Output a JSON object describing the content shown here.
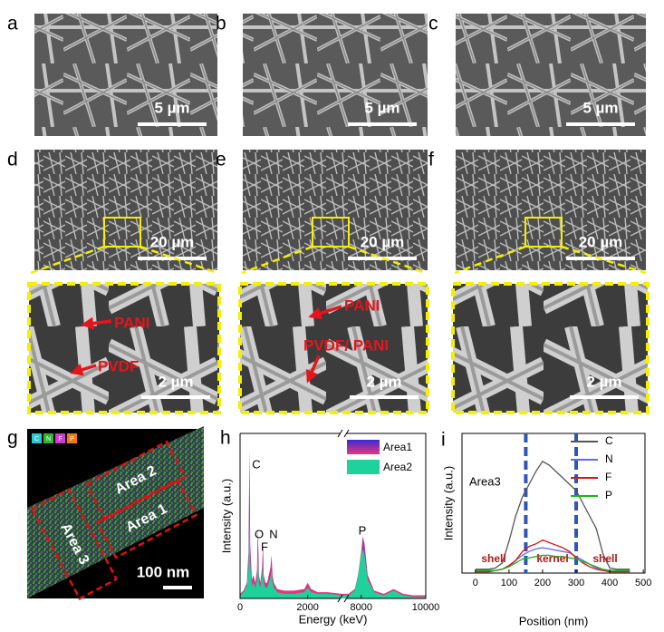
{
  "figure": {
    "sem_panels": [
      {
        "label": "a",
        "scale_bar": "5 µm"
      },
      {
        "label": "b",
        "scale_bar": "5 µm"
      },
      {
        "label": "c",
        "scale_bar": "5 µm"
      },
      {
        "label": "d",
        "scale_bar": "20 µm"
      },
      {
        "label": "e",
        "scale_bar": "20 µm"
      },
      {
        "label": "f",
        "scale_bar": "20 µm"
      }
    ],
    "zoom_panels": [
      {
        "scale_bar": "2 µm",
        "annotations": [
          "PANI",
          "PVDF"
        ]
      },
      {
        "scale_bar": "2 µm",
        "annotations": [
          "PANI",
          "PVDF/ PANI"
        ]
      },
      {
        "scale_bar": "2 µm"
      }
    ],
    "panel_g": {
      "label": "g",
      "elements": [
        "C",
        "N",
        "F",
        "P"
      ],
      "areas": [
        "Area 2",
        "Area 1",
        "Area 3"
      ],
      "scale_bar": "100 nm"
    },
    "panel_h": {
      "label": "h",
      "type": "area",
      "x_label": "Energy (keV)",
      "y_label": "Intensity (a.u.)",
      "xlim": [
        0,
        10000
      ],
      "axis_break": [
        3000,
        7500
      ],
      "xticks": [
        0,
        2000,
        8000,
        10000
      ],
      "ylim": [
        0,
        100
      ],
      "peak_labels": [
        "C",
        "O",
        "F",
        "N",
        "P"
      ],
      "x": [
        0,
        100,
        200,
        250,
        277,
        300,
        350,
        400,
        450,
        500,
        525,
        560,
        600,
        650,
        677,
        700,
        750,
        800,
        850,
        900,
        930,
        960,
        1000,
        1100,
        1300,
        1600,
        1900,
        2000,
        2100,
        2300,
        2600,
        3000,
        7600,
        7800,
        7900,
        8000,
        8050,
        8100,
        8200,
        8400,
        8700,
        9000,
        9100,
        9300,
        9600,
        10000
      ],
      "series": [
        {
          "name": "Area1",
          "color": [
            "#3a2ad6",
            "#e8377a"
          ],
          "values": [
            3,
            5,
            10,
            30,
            95,
            35,
            12,
            15,
            10,
            18,
            45,
            15,
            10,
            20,
            35,
            15,
            10,
            10,
            15,
            20,
            28,
            15,
            10,
            6,
            5,
            5,
            6,
            10,
            6,
            4,
            4,
            3,
            3,
            6,
            15,
            30,
            40,
            35,
            15,
            5,
            3,
            6,
            5,
            3,
            2,
            2
          ]
        },
        {
          "name": "Area2",
          "color": "#1fd19a",
          "values": [
            2,
            4,
            8,
            20,
            55,
            22,
            8,
            10,
            7,
            12,
            30,
            10,
            7,
            14,
            22,
            10,
            7,
            7,
            10,
            14,
            18,
            10,
            7,
            4,
            3,
            3,
            4,
            7,
            4,
            3,
            3,
            2,
            2,
            5,
            14,
            28,
            32,
            28,
            12,
            4,
            2,
            5,
            4,
            2,
            1,
            1
          ]
        }
      ]
    },
    "panel_i": {
      "label": "i",
      "type": "line",
      "x_label": "Position (nm)",
      "y_label": "Intensity (a.u.)",
      "annotation": "Area3",
      "regions": [
        "shell",
        "kernel",
        "shell"
      ],
      "boundaries": [
        150,
        300
      ],
      "xlim": [
        -40,
        505
      ],
      "xticks": [
        0,
        100,
        200,
        300,
        400,
        500
      ],
      "ylim": [
        0,
        110
      ],
      "x": [
        0,
        20,
        40,
        60,
        80,
        100,
        120,
        140,
        160,
        180,
        200,
        220,
        240,
        260,
        280,
        300,
        320,
        340,
        360,
        380,
        400,
        420,
        440,
        460
      ],
      "series": [
        {
          "name": "C",
          "color": "#555555",
          "values": [
            3,
            3,
            3,
            4,
            8,
            25,
            45,
            60,
            70,
            80,
            88,
            85,
            80,
            75,
            70,
            65,
            55,
            45,
            35,
            15,
            4,
            3,
            3,
            3
          ]
        },
        {
          "name": "N",
          "color": "#5a6cf0",
          "values": [
            2,
            2,
            2,
            2,
            3,
            5,
            10,
            14,
            17,
            19,
            20,
            19,
            18,
            17,
            16,
            13,
            10,
            7,
            4,
            2,
            2,
            2,
            2,
            2
          ]
        },
        {
          "name": "F",
          "color": "#e01010",
          "values": [
            1,
            1,
            1,
            2,
            3,
            6,
            10,
            17,
            21,
            23,
            26,
            24,
            22,
            20,
            17,
            12,
            8,
            5,
            3,
            2,
            1,
            1,
            1,
            1
          ]
        },
        {
          "name": "P",
          "color": "#18b818",
          "values": [
            2,
            2,
            2,
            2,
            3,
            5,
            8,
            11,
            12,
            13,
            14,
            14,
            13,
            13,
            12,
            11,
            9,
            7,
            5,
            3,
            2,
            2,
            2,
            2
          ]
        }
      ]
    }
  }
}
